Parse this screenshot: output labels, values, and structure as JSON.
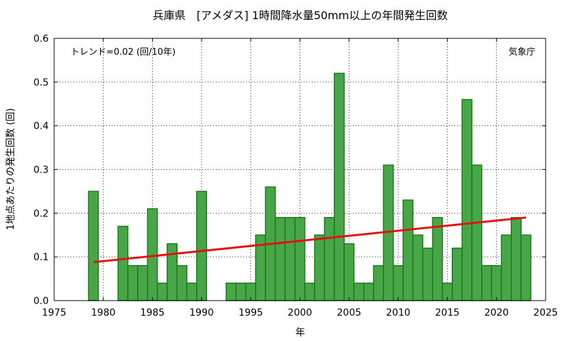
{
  "chart_data": {
    "type": "bar",
    "title": "兵庫県　[アメダス] 1時間降水量50mm以上の年間発生回数",
    "xlabel": "年",
    "ylabel": "1地点あたりの発生回数 (回)",
    "trend_label": "トレンド=0.02 (回/10年)",
    "source": "気象庁",
    "xlim": [
      1975,
      2025
    ],
    "ylim": [
      0,
      0.6
    ],
    "x_ticks": [
      "1975",
      "1980",
      "1985",
      "1990",
      "1995",
      "2000",
      "2005",
      "2010",
      "2015",
      "2020",
      "2025"
    ],
    "y_ticks": [
      "0.0",
      "0.1",
      "0.2",
      "0.3",
      "0.4",
      "0.5",
      "0.6"
    ],
    "grid": true,
    "colors": {
      "bar_fill": "#48a548",
      "bar_stroke": "#1a7a1a",
      "trend": "#e31010"
    },
    "series": [
      {
        "x": [
          1979,
          1980,
          1981,
          1982,
          1983,
          1984,
          1985,
          1986,
          1987,
          1988,
          1989,
          1990,
          1991,
          1992,
          1993,
          1994,
          1995,
          1996,
          1997,
          1998,
          1999,
          2000,
          2001,
          2002,
          2003,
          2004,
          2005,
          2006,
          2007,
          2008,
          2009,
          2010,
          2011,
          2012,
          2013,
          2014,
          2015,
          2016,
          2017,
          2018,
          2019,
          2020,
          2021,
          2022,
          2023
        ],
        "values": [
          0.25,
          0,
          0,
          0.17,
          0.08,
          0.08,
          0.21,
          0.04,
          0.13,
          0.08,
          0.04,
          0.25,
          0,
          0,
          0.04,
          0.04,
          0.04,
          0.15,
          0.26,
          0.19,
          0.19,
          0.19,
          0.04,
          0.15,
          0.19,
          0.52,
          0.13,
          0.04,
          0.04,
          0.08,
          0.31,
          0.08,
          0.23,
          0.15,
          0.12,
          0.19,
          0.04,
          0.12,
          0.46,
          0.31,
          0.08,
          0.08,
          0.15,
          0.19,
          0.15
        ]
      }
    ],
    "trend_line": {
      "x": [
        1979,
        2023
      ],
      "y": [
        0.088,
        0.19
      ]
    }
  }
}
